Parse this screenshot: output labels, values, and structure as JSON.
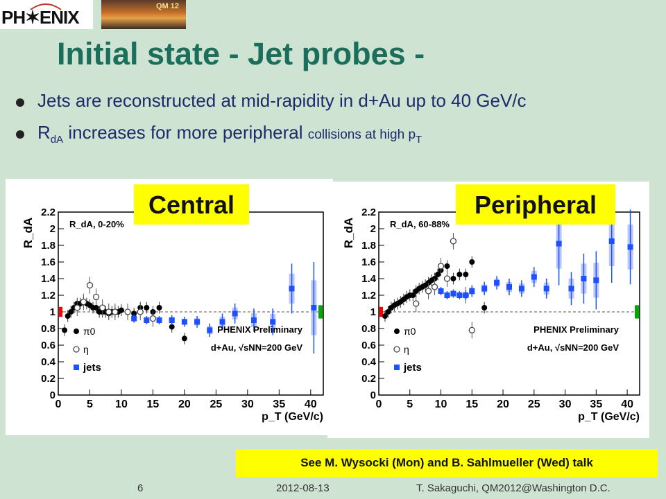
{
  "slide": {
    "logo_text": "PH✶ENIX",
    "logo_badge": "QM 12",
    "title": "Initial state - Jet probes -",
    "bullet_1": "Jets are reconstructed at mid-rapidity in d+Au up to 40 GeV/c",
    "bullet_2_main": "increases for more peripheral",
    "bullet_2_r": "R",
    "bullet_2_sub": "dA",
    "bullet_2_small": "collisions at high p",
    "bullet_2_small_sub": "T",
    "tag_central": "Central",
    "tag_peripheral": "Peripheral",
    "see_note": "See M. Wysocki (Mon) and B. Sahlmueller (Wed) talk",
    "page_number": "6",
    "date": "2012-08-13",
    "author": "T. Sakaguchi, QM2012@Washington D.C."
  },
  "colors": {
    "background": "#cfe3d2",
    "title": "#1b6e5c",
    "bullet_text": "#1e2a6b",
    "highlight": "#ffff00",
    "jets": "#1e50ff",
    "jets_sys": "#a9b8ff",
    "pi0": "#000000",
    "eta": "#444444",
    "norm_low": "#ff0000",
    "norm_high": "#00aa00"
  },
  "chart_data": [
    {
      "type": "scatter",
      "panel_label": "R_dA, 0-20%",
      "ylabel": "R_dA",
      "xlabel": "p_T (GeV/c)",
      "xlim": [
        0,
        42
      ],
      "ylim": [
        0,
        2.2
      ],
      "x_ticks": [
        0,
        5,
        10,
        15,
        20,
        25,
        30,
        35,
        40
      ],
      "y_ticks": [
        0,
        0.2,
        0.4,
        0.6,
        0.8,
        1,
        1.2,
        1.4,
        1.6,
        1.8,
        2,
        2.2
      ],
      "reference_line": 1,
      "annotation_1": "PHENIX Preliminary",
      "annotation_2": "d+Au, √sNN=200 GeV",
      "series": [
        {
          "name": "π0",
          "marker": "filled-circle",
          "x": [
            1.0,
            1.5,
            2.0,
            2.5,
            3.0,
            3.5,
            4.0,
            4.5,
            5.0,
            5.5,
            6.0,
            6.5,
            7.0,
            7.5,
            8.0,
            8.5,
            9.0,
            9.5,
            10,
            12,
            13,
            14,
            15,
            16,
            18,
            20
          ],
          "y": [
            0.78,
            0.95,
            1.0,
            1.05,
            1.1,
            1.1,
            1.12,
            1.1,
            1.08,
            1.05,
            1.05,
            1.0,
            1.0,
            1.0,
            0.98,
            1.0,
            1.0,
            1.0,
            1.02,
            0.98,
            1.05,
            1.05,
            1.0,
            1.05,
            0.82,
            0.68
          ]
        },
        {
          "name": "η",
          "marker": "open-circle",
          "x": [
            3,
            4,
            5,
            6,
            7,
            8,
            9,
            11,
            13,
            15
          ],
          "y": [
            1.05,
            1.12,
            1.32,
            1.18,
            1.05,
            1.0,
            1.0,
            1.0,
            1.0,
            0.92
          ]
        },
        {
          "name": "jets",
          "marker": "filled-square",
          "x": [
            12,
            14,
            16,
            18,
            20,
            22,
            24,
            26,
            28,
            31,
            34,
            37,
            40.5
          ],
          "y": [
            0.92,
            0.9,
            0.9,
            0.9,
            0.88,
            0.88,
            0.78,
            0.88,
            0.98,
            0.9,
            0.88,
            1.28,
            1.05
          ],
          "err": [
            0.05,
            0.05,
            0.05,
            0.06,
            0.06,
            0.07,
            0.08,
            0.1,
            0.12,
            0.14,
            0.16,
            0.3,
            0.55
          ]
        }
      ]
    },
    {
      "type": "scatter",
      "panel_label": "R_dA, 60-88%",
      "ylabel": "R_dA",
      "xlabel": "p_T (GeV/c)",
      "xlim": [
        0,
        42
      ],
      "ylim": [
        0,
        2.2
      ],
      "x_ticks": [
        0,
        5,
        10,
        15,
        20,
        25,
        30,
        35,
        40
      ],
      "y_ticks": [
        0,
        0.2,
        0.4,
        0.6,
        0.8,
        1,
        1.2,
        1.4,
        1.6,
        1.8,
        2,
        2.2
      ],
      "reference_line": 1,
      "annotation_1": "PHENIX Preliminary",
      "annotation_2": "d+Au, √sNN=200 GeV",
      "series": [
        {
          "name": "π0",
          "marker": "filled-circle",
          "x": [
            1.0,
            1.5,
            2.0,
            2.5,
            3.0,
            3.5,
            4.0,
            4.5,
            5.0,
            5.5,
            6.0,
            6.5,
            7.0,
            7.5,
            8.0,
            8.5,
            9.0,
            9.5,
            10,
            11,
            12,
            13,
            14,
            15,
            17
          ],
          "y": [
            0.95,
            1.0,
            1.05,
            1.08,
            1.1,
            1.12,
            1.15,
            1.18,
            1.2,
            1.2,
            1.25,
            1.28,
            1.3,
            1.32,
            1.35,
            1.38,
            1.4,
            1.45,
            1.5,
            1.55,
            1.4,
            1.45,
            1.45,
            1.6,
            1.05
          ]
        },
        {
          "name": "η",
          "marker": "open-circle",
          "x": [
            6,
            8,
            9,
            10,
            11,
            12,
            14,
            15
          ],
          "y": [
            1.1,
            1.25,
            1.3,
            1.55,
            1.4,
            1.85,
            1.2,
            0.78
          ]
        },
        {
          "name": "jets",
          "marker": "filled-square",
          "x": [
            10,
            11,
            12,
            13,
            14,
            15,
            17,
            19,
            21,
            23,
            25,
            27,
            29,
            31,
            33,
            35,
            37.5,
            40.5
          ],
          "y": [
            1.25,
            1.2,
            1.22,
            1.2,
            1.2,
            1.25,
            1.28,
            1.35,
            1.3,
            1.28,
            1.42,
            1.28,
            1.82,
            1.28,
            1.4,
            1.38,
            1.85,
            1.78
          ],
          "err": [
            0.05,
            0.05,
            0.05,
            0.05,
            0.06,
            0.07,
            0.08,
            0.08,
            0.1,
            0.1,
            0.12,
            0.12,
            0.5,
            0.2,
            0.3,
            0.35,
            0.5,
            0.45
          ]
        }
      ]
    }
  ]
}
